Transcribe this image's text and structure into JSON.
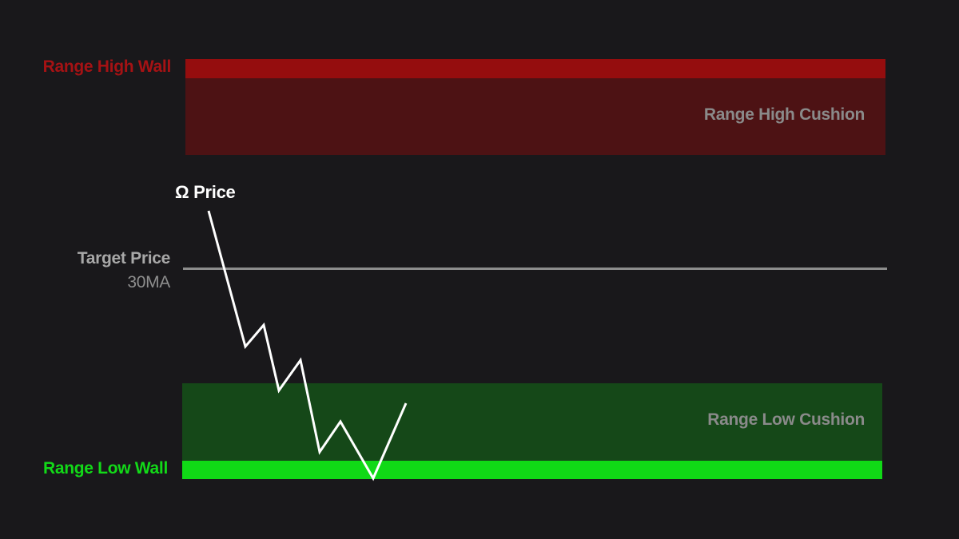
{
  "labels": {
    "range_high_wall": "Range High Wall",
    "range_high_cushion": "Range High Cushion",
    "target_price": "Target Price",
    "target_ma": "30MA",
    "range_low_cushion": "Range Low Cushion",
    "range_low_wall": "Range Low Wall",
    "price": "Ω Price"
  },
  "colors": {
    "background": "#19181b",
    "range_high_wall": "#950d0e",
    "range_high_cushion": "#4d1214",
    "range_low_cushion": "#154818",
    "range_low_wall": "#10d916",
    "target_line": "#8d8d8d",
    "price_line": "#ffffff"
  }
}
